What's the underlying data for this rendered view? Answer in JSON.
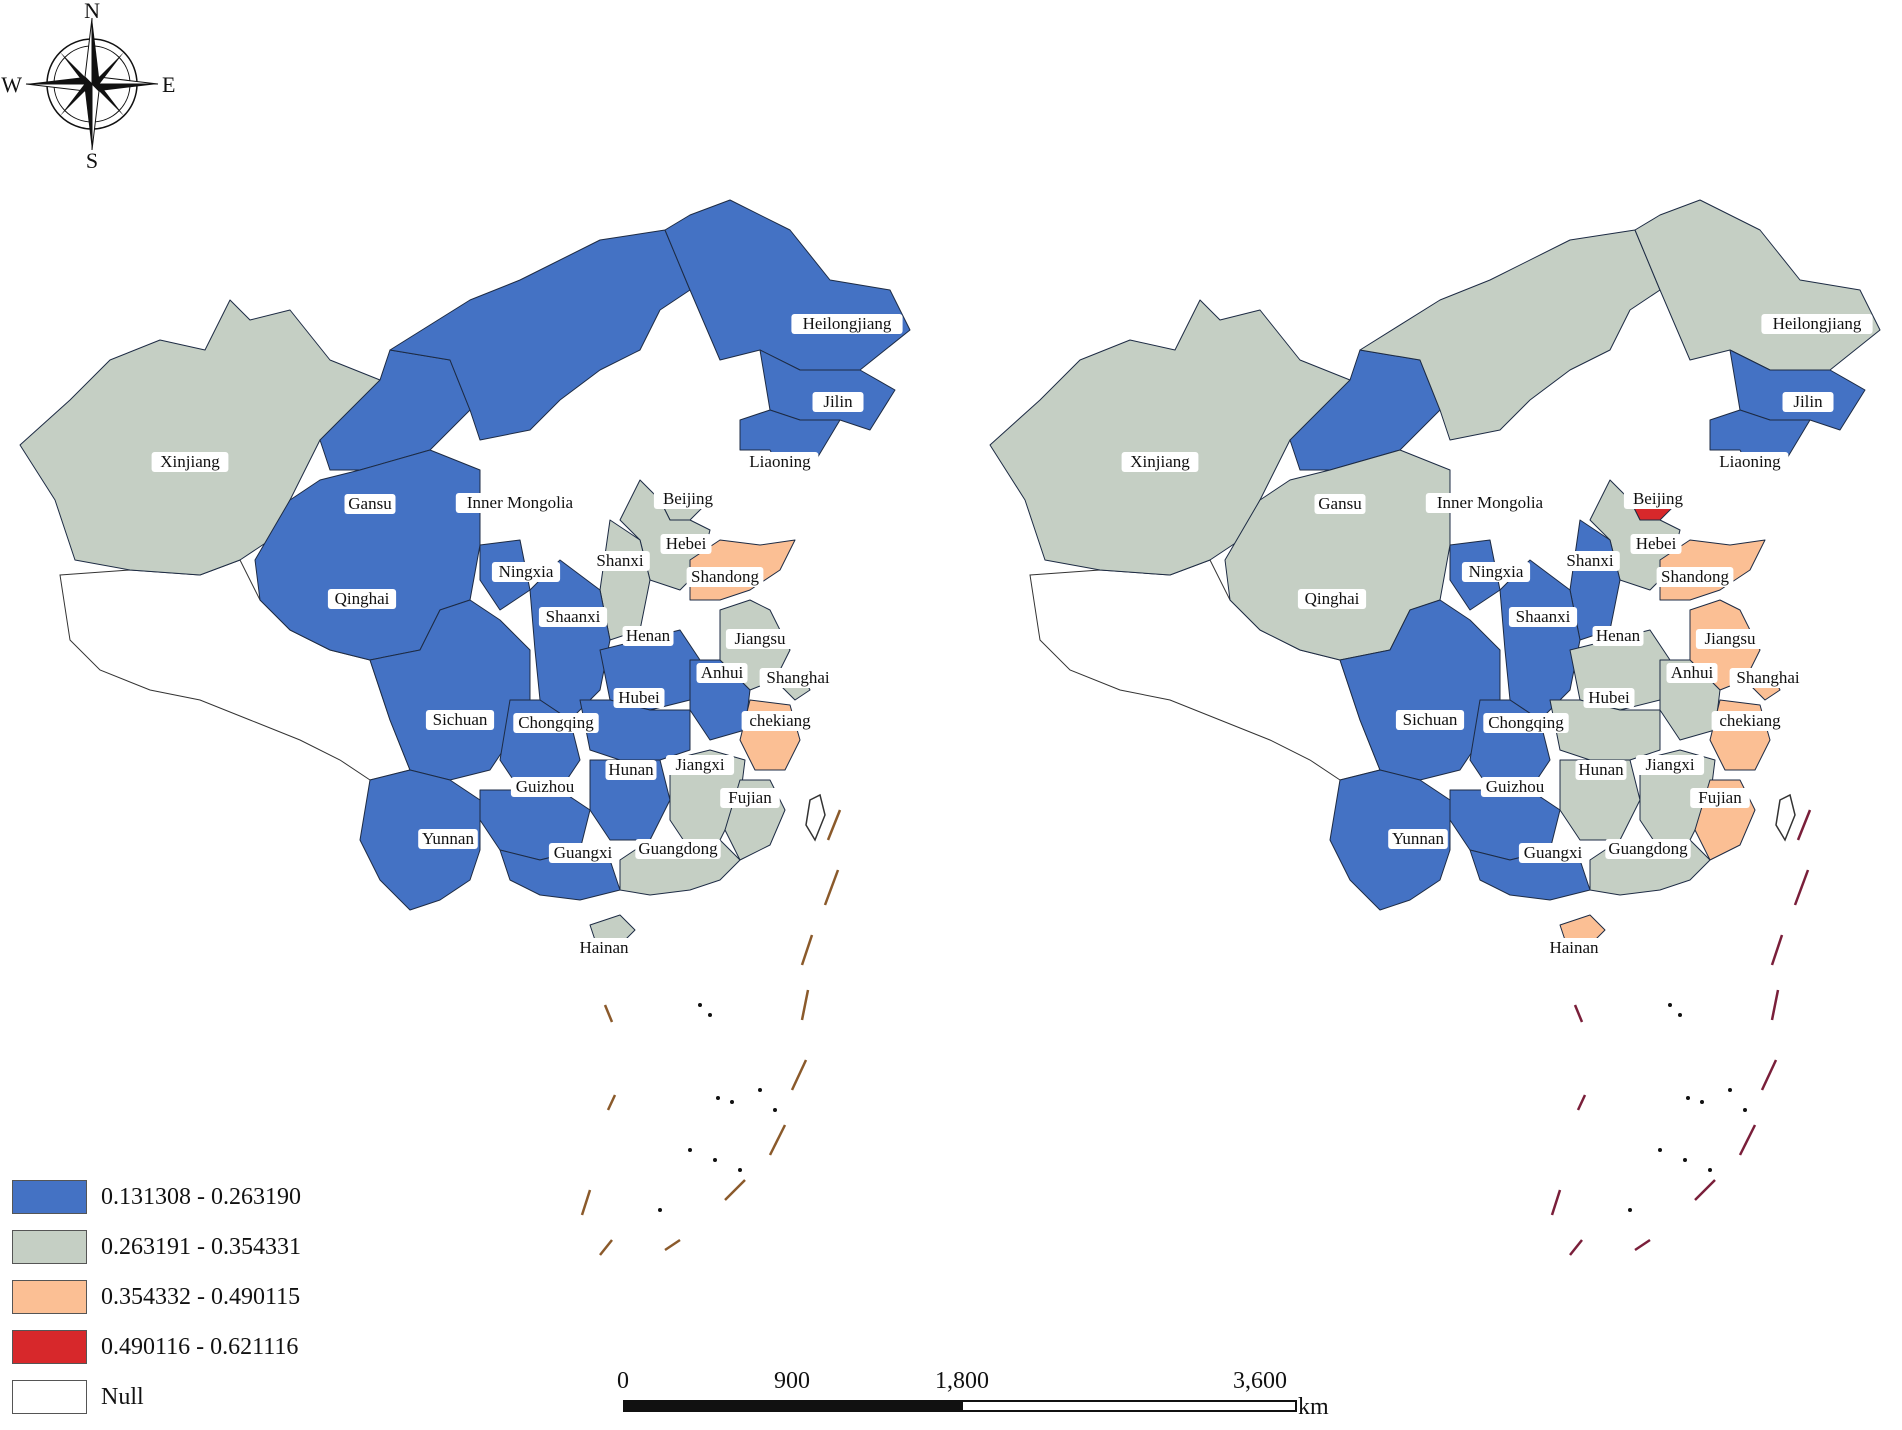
{
  "compass": {
    "n": "N",
    "s": "S",
    "e": "E",
    "w": "W"
  },
  "legend": {
    "items": [
      {
        "label": "0.131308 - 0.263190",
        "color": "#4472c4"
      },
      {
        "label": "0.263191 - 0.354331",
        "color": "#c5cfc4"
      },
      {
        "label": "0.354332 - 0.490115",
        "color": "#fbbf94"
      },
      {
        "label": "0.490116 - 0.621116",
        "color": "#d7282b"
      },
      {
        "label": "Null",
        "color": "#ffffff"
      }
    ]
  },
  "scale_bar": {
    "ticks": [
      "0",
      "900",
      "1,800",
      "3,600"
    ],
    "unit": "km"
  },
  "maps": [
    {
      "provinces": [
        {
          "name": "Xinjiang",
          "class": 2
        },
        {
          "name": "Gansu",
          "class": 1
        },
        {
          "name": "Inner Mongolia",
          "class": 1
        },
        {
          "name": "Heilongjiang",
          "class": 1
        },
        {
          "name": "Jilin",
          "class": 1
        },
        {
          "name": "Liaoning",
          "class": 1
        },
        {
          "name": "Beijing",
          "class": 2
        },
        {
          "name": "Hebei",
          "class": 2
        },
        {
          "name": "Shanxi",
          "class": 2
        },
        {
          "name": "Shandong",
          "class": 3
        },
        {
          "name": "Ningxia",
          "class": 1
        },
        {
          "name": "Qinghai",
          "class": 1
        },
        {
          "name": "Shaanxi",
          "class": 1
        },
        {
          "name": "Henan",
          "class": 1
        },
        {
          "name": "Jiangsu",
          "class": 2
        },
        {
          "name": "Anhui",
          "class": 1
        },
        {
          "name": "Shanghai",
          "class": 2
        },
        {
          "name": "Sichuan",
          "class": 1
        },
        {
          "name": "Chongqing",
          "class": 1
        },
        {
          "name": "Hubei",
          "class": 1
        },
        {
          "name": "chekiang",
          "class": 3
        },
        {
          "name": "Hunan",
          "class": 1
        },
        {
          "name": "Jiangxi",
          "class": 2
        },
        {
          "name": "Guizhou",
          "class": 1
        },
        {
          "name": "Fujian",
          "class": 2
        },
        {
          "name": "Yunnan",
          "class": 1
        },
        {
          "name": "Guangxi",
          "class": 1
        },
        {
          "name": "Guangdong",
          "class": 2
        },
        {
          "name": "Hainan",
          "class": 2
        }
      ]
    },
    {
      "provinces": [
        {
          "name": "Xinjiang",
          "class": 2
        },
        {
          "name": "Gansu",
          "class": 1
        },
        {
          "name": "Inner Mongolia",
          "class": 2
        },
        {
          "name": "Heilongjiang",
          "class": 2
        },
        {
          "name": "Jilin",
          "class": 1
        },
        {
          "name": "Liaoning",
          "class": 1
        },
        {
          "name": "Beijing",
          "class": 4
        },
        {
          "name": "Hebei",
          "class": 2
        },
        {
          "name": "Shanxi",
          "class": 1
        },
        {
          "name": "Shandong",
          "class": 3
        },
        {
          "name": "Ningxia",
          "class": 1
        },
        {
          "name": "Qinghai",
          "class": 2
        },
        {
          "name": "Shaanxi",
          "class": 1
        },
        {
          "name": "Henan",
          "class": 2
        },
        {
          "name": "Jiangsu",
          "class": 3
        },
        {
          "name": "Anhui",
          "class": 2
        },
        {
          "name": "Shanghai",
          "class": 3
        },
        {
          "name": "Sichuan",
          "class": 1
        },
        {
          "name": "Chongqing",
          "class": 1
        },
        {
          "name": "Hubei",
          "class": 2
        },
        {
          "name": "chekiang",
          "class": 3
        },
        {
          "name": "Hunan",
          "class": 2
        },
        {
          "name": "Jiangxi",
          "class": 2
        },
        {
          "name": "Guizhou",
          "class": 1
        },
        {
          "name": "Fujian",
          "class": 3
        },
        {
          "name": "Yunnan",
          "class": 1
        },
        {
          "name": "Guangxi",
          "class": 1
        },
        {
          "name": "Guangdong",
          "class": 2
        },
        {
          "name": "Hainan",
          "class": 3
        }
      ]
    }
  ]
}
